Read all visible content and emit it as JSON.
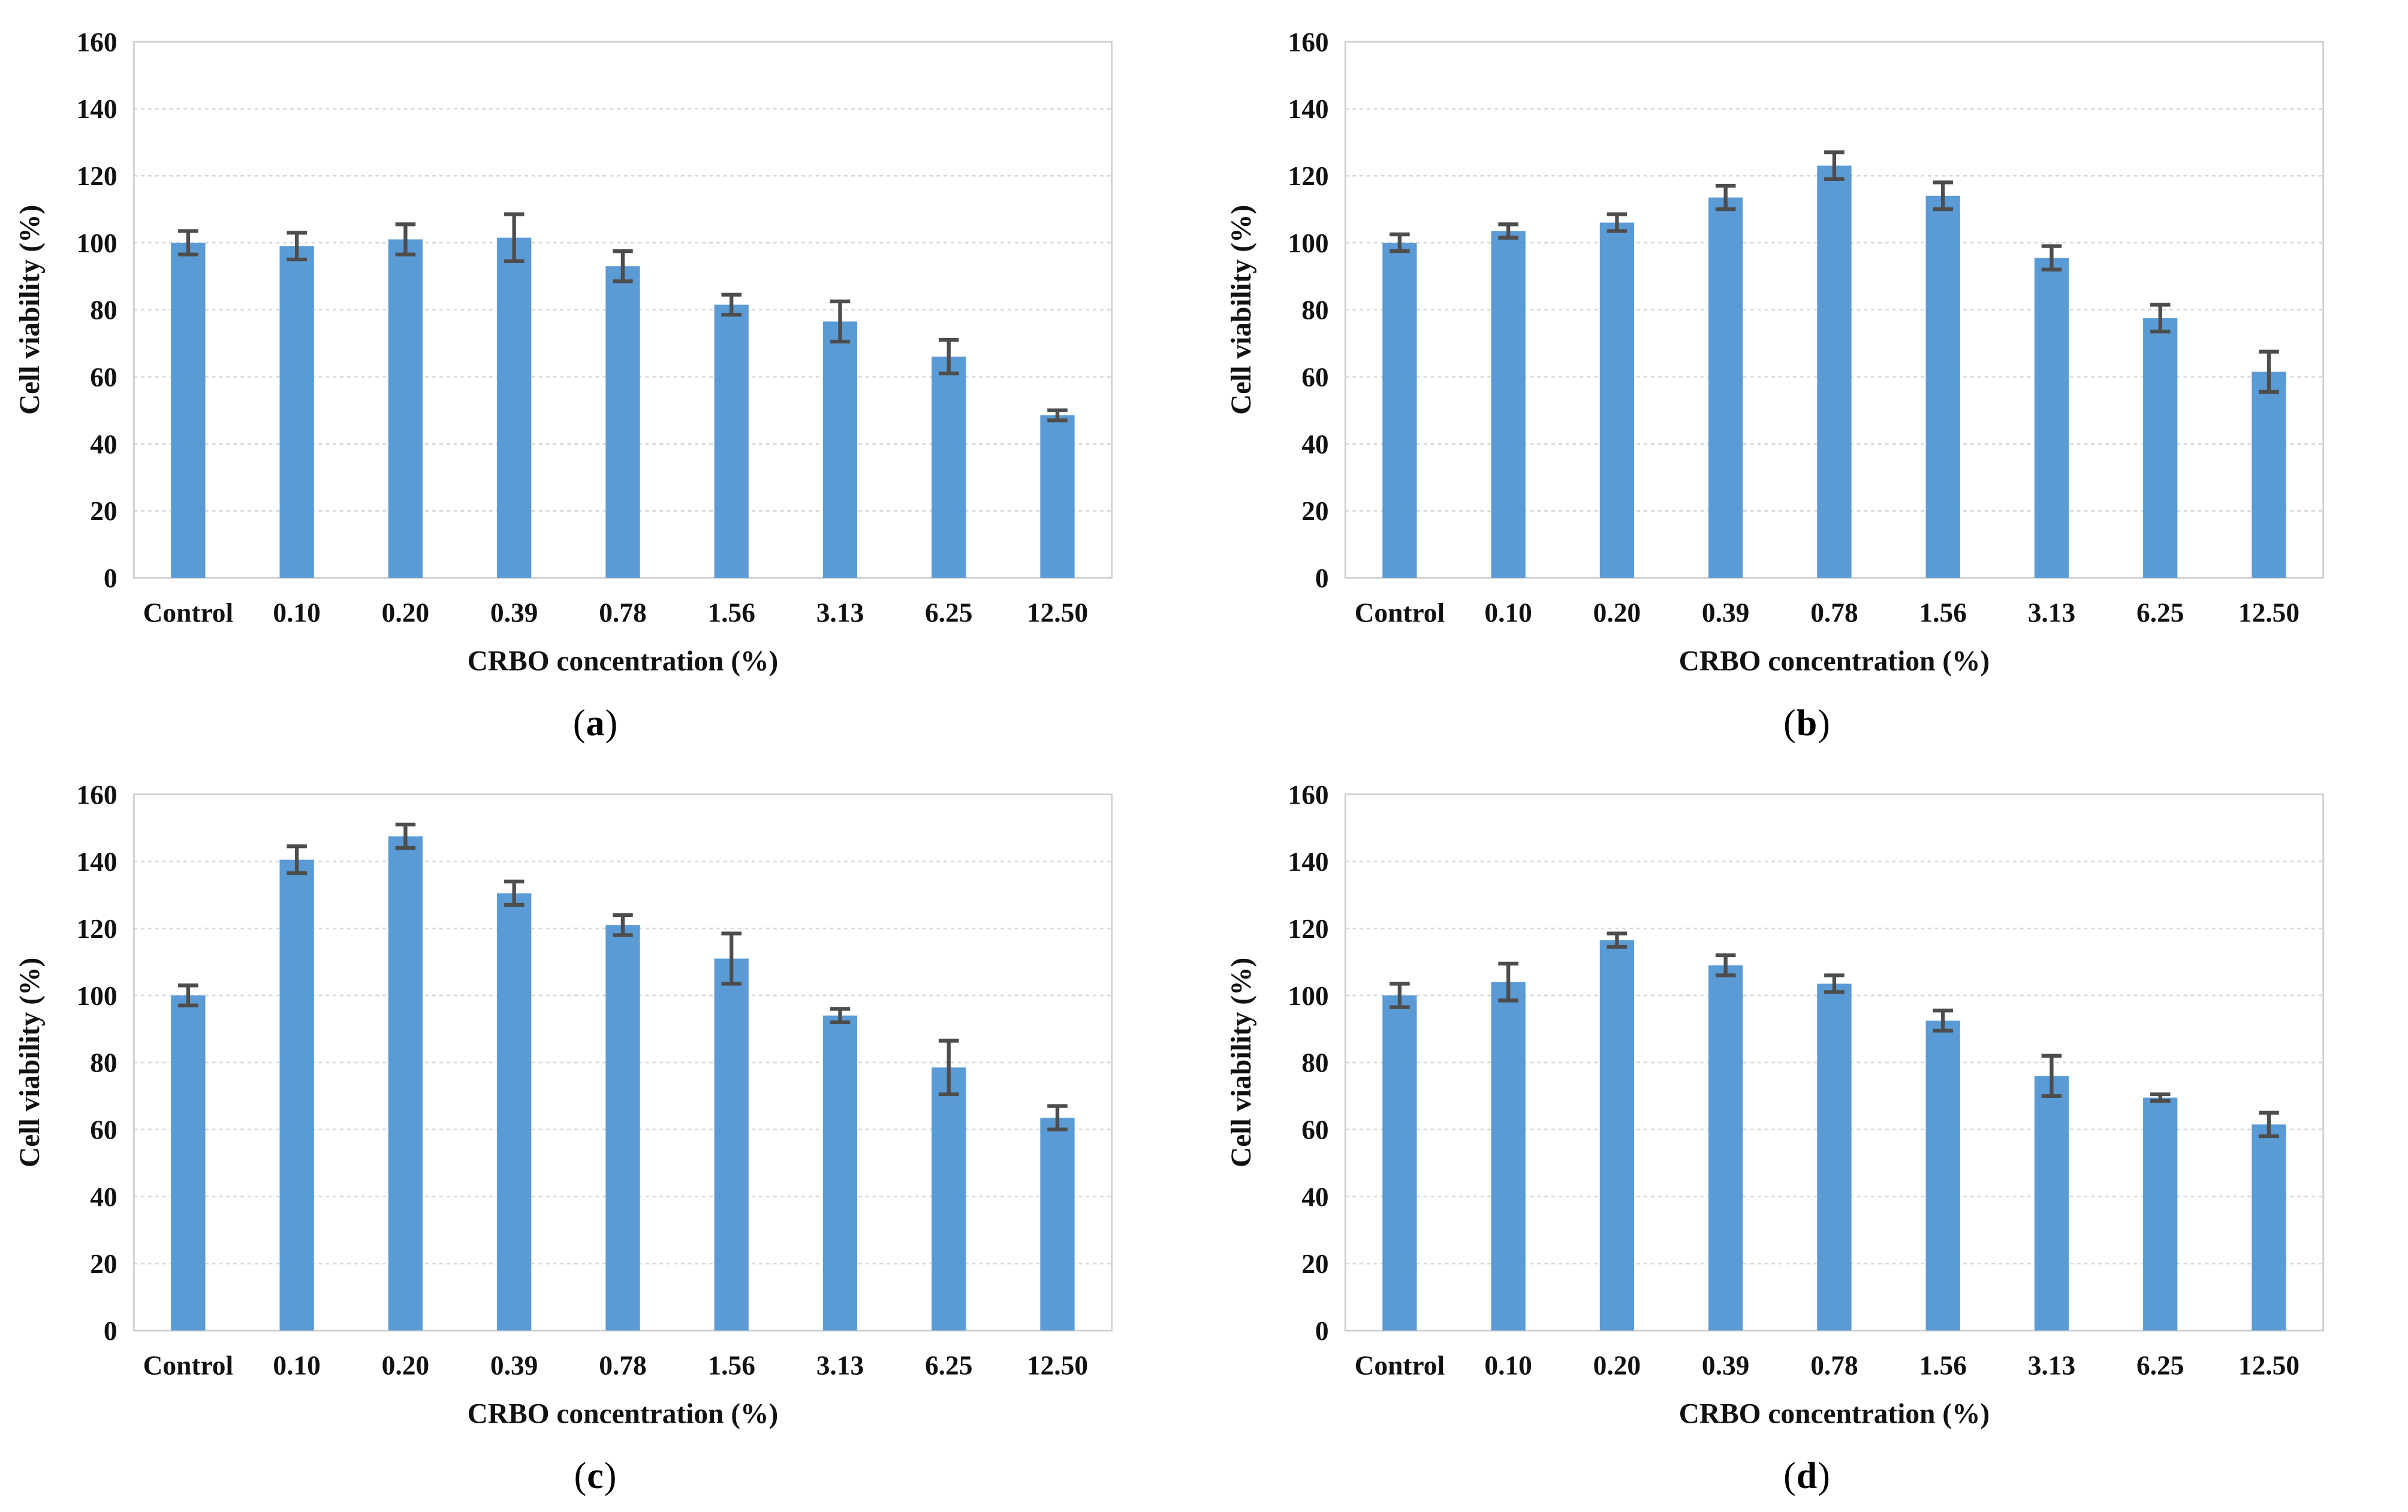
{
  "figure": {
    "caption_open": "(",
    "caption_close": ")",
    "colors": {
      "bar": "#5b9bd5",
      "error_bar": "#4d4d4d",
      "gridline": "#d9d9d9",
      "plot_border": "#cfcfcf",
      "text": "#111111"
    }
  },
  "chart_data": [
    {
      "type": "bar",
      "panel_letter": "a",
      "xlabel": "CRBO concentration (%)",
      "ylabel": "Cell viability (%)",
      "categories": [
        "Control",
        "0.10",
        "0.20",
        "0.39",
        "0.78",
        "1.56",
        "3.13",
        "6.25",
        "12.50"
      ],
      "values": [
        100,
        99,
        101,
        101.5,
        93,
        81.5,
        76.5,
        66,
        48.5
      ],
      "errors": [
        3.5,
        4,
        4.5,
        7,
        4.5,
        3,
        6,
        5,
        1.5
      ],
      "ylim": [
        0,
        160
      ],
      "ytick_step": 20,
      "grid": true,
      "legend": "none"
    },
    {
      "type": "bar",
      "panel_letter": "b",
      "xlabel": "CRBO concentration (%)",
      "ylabel": "Cell viability (%)",
      "categories": [
        "Control",
        "0.10",
        "0.20",
        "0.39",
        "0.78",
        "1.56",
        "3.13",
        "6.25",
        "12.50"
      ],
      "values": [
        100,
        103.5,
        106,
        113.5,
        123,
        114,
        95.5,
        77.5,
        61.5
      ],
      "errors": [
        2.5,
        2,
        2.5,
        3.5,
        4,
        4,
        3.5,
        4,
        6
      ],
      "ylim": [
        0,
        160
      ],
      "ytick_step": 20,
      "grid": true,
      "legend": "none"
    },
    {
      "type": "bar",
      "panel_letter": "c",
      "xlabel": "CRBO concentration (%)",
      "ylabel": "Cell viability (%)",
      "categories": [
        "Control",
        "0.10",
        "0.20",
        "0.39",
        "0.78",
        "1.56",
        "3.13",
        "6.25",
        "12.50"
      ],
      "values": [
        100,
        140.5,
        147.5,
        130.5,
        121,
        111,
        94,
        78.5,
        63.5
      ],
      "errors": [
        3,
        4,
        3.5,
        3.5,
        3,
        7.5,
        2,
        8,
        3.5
      ],
      "ylim": [
        0,
        160
      ],
      "ytick_step": 20,
      "grid": true,
      "legend": "none"
    },
    {
      "type": "bar",
      "panel_letter": "d",
      "xlabel": "CRBO concentration (%)",
      "ylabel": "Cell viability (%)",
      "categories": [
        "Control",
        "0.10",
        "0.20",
        "0.39",
        "0.78",
        "1.56",
        "3.13",
        "6.25",
        "12.50"
      ],
      "values": [
        100,
        104,
        116.5,
        109,
        103.5,
        92.5,
        76,
        69.5,
        61.5
      ],
      "errors": [
        3.5,
        5.5,
        2,
        3,
        2.5,
        3,
        6,
        1,
        3.5
      ],
      "ylim": [
        0,
        160
      ],
      "ytick_step": 20,
      "grid": true,
      "legend": "none"
    }
  ]
}
